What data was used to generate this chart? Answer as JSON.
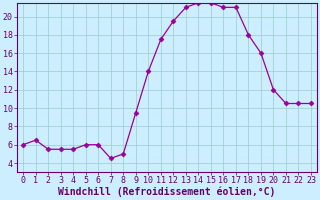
{
  "x": [
    0,
    1,
    2,
    3,
    4,
    5,
    6,
    7,
    8,
    9,
    10,
    11,
    12,
    13,
    14,
    15,
    16,
    17,
    18,
    19,
    20,
    21,
    22,
    23
  ],
  "y": [
    6,
    6.5,
    5.5,
    5.5,
    5.5,
    6,
    6,
    4.5,
    5,
    9.5,
    14,
    17.5,
    19.5,
    21,
    21.5,
    21.5,
    21,
    21,
    18,
    16,
    12,
    10.5,
    10.5,
    10.5
  ],
  "line_color": "#990099",
  "marker": "D",
  "marker_size": 2.5,
  "xlabel": "Windchill (Refroidissement éolien,°C)",
  "xlabel_color": "#660066",
  "background_color": "#cceeff",
  "grid_color": "#99cccc",
  "axis_color": "#660066",
  "tick_color": "#660066",
  "ylim": [
    3,
    21.5
  ],
  "yticks": [
    4,
    6,
    8,
    10,
    12,
    14,
    16,
    18,
    20
  ],
  "xticks": [
    0,
    1,
    2,
    3,
    4,
    5,
    6,
    7,
    8,
    9,
    10,
    11,
    12,
    13,
    14,
    15,
    16,
    17,
    18,
    19,
    20,
    21,
    22,
    23
  ],
  "font_size": 6,
  "xlabel_fontsize": 7
}
